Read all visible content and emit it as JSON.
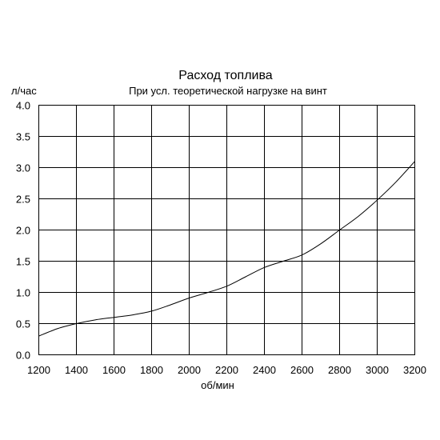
{
  "chart_data": {
    "type": "line",
    "title": "Расход топлива",
    "subtitle": "При усл. теоретической нагрузке на винт",
    "xlabel": "об/мин",
    "ylabel": "л/час",
    "xlim": [
      1200,
      3200
    ],
    "ylim": [
      0,
      4
    ],
    "xticks": [
      "1200",
      "1400",
      "1600",
      "1800",
      "2000",
      "2200",
      "2400",
      "2600",
      "2800",
      "3000",
      "3200"
    ],
    "yticks": [
      "0.0",
      "0.5",
      "1.0",
      "1.5",
      "2.0",
      "2.5",
      "3.0",
      "3.5",
      "4.0"
    ],
    "grid": true,
    "series": [
      {
        "x": [
          1200,
          1300,
          1400,
          1500,
          1600,
          1700,
          1800,
          1900,
          2000,
          2100,
          2200,
          2300,
          2400,
          2500,
          2600,
          2700,
          2800,
          2900,
          3000,
          3100,
          3200
        ],
        "values": [
          0.3,
          0.42,
          0.5,
          0.56,
          0.6,
          0.64,
          0.7,
          0.8,
          0.91,
          1.0,
          1.1,
          1.25,
          1.4,
          1.5,
          1.6,
          1.78,
          2.0,
          2.22,
          2.48,
          2.77,
          3.1
        ]
      }
    ]
  }
}
